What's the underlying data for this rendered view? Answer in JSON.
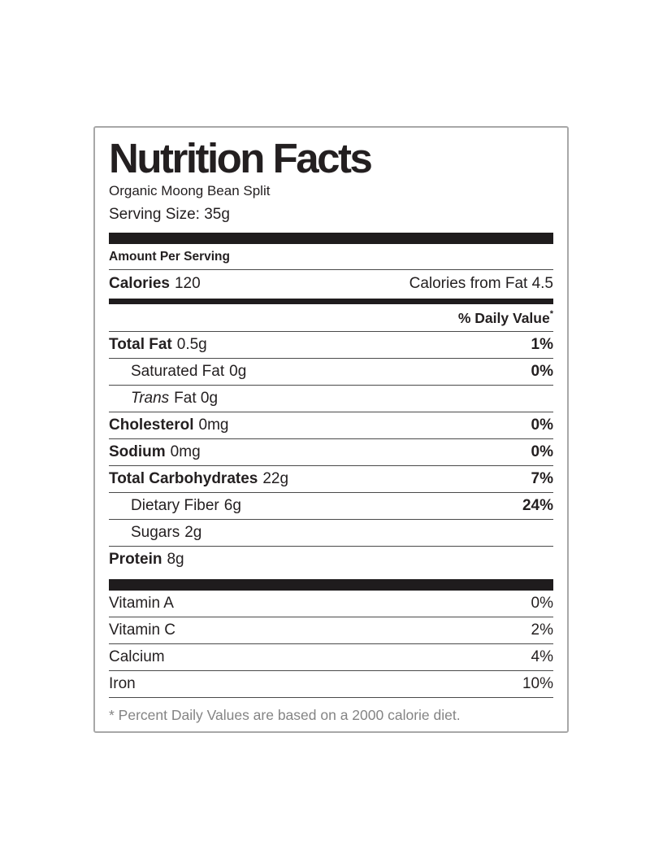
{
  "label": {
    "title": "Nutrition Facts",
    "product_name": "Organic Moong Bean Split",
    "serving_size": "Serving Size: 35g",
    "amount_per_serving": "Amount Per Serving",
    "calories": {
      "label": "Calories",
      "value": "120",
      "from_fat": "Calories from Fat 4.5"
    },
    "daily_value_header": "% Daily Value",
    "daily_value_asterisk": "*",
    "nutrients": [
      {
        "name": "Total Fat",
        "amount": "0.5g",
        "percent": "1%"
      },
      {
        "name": "Saturated Fat",
        "amount": "0g",
        "percent": "0%"
      },
      {
        "name": "Trans",
        "amount": "Fat 0g",
        "percent": ""
      },
      {
        "name": "Cholesterol",
        "amount": "0mg",
        "percent": "0%"
      },
      {
        "name": "Sodium",
        "amount": "0mg",
        "percent": "0%"
      },
      {
        "name": "Total Carbohydrates",
        "amount": "22g",
        "percent": "7%"
      },
      {
        "name": "Dietary Fiber",
        "amount": "6g",
        "percent": "24%"
      },
      {
        "name": "Sugars",
        "amount": "2g",
        "percent": ""
      },
      {
        "name": "Protein",
        "amount": "8g",
        "percent": ""
      }
    ],
    "vitamins": [
      {
        "name": "Vitamin A",
        "percent": "0%"
      },
      {
        "name": "Vitamin C",
        "percent": "2%"
      },
      {
        "name": "Calcium",
        "percent": "4%"
      },
      {
        "name": "Iron",
        "percent": "10%"
      }
    ],
    "footnote": "* Percent Daily Values are based on a 2000 calorie diet."
  },
  "colors": {
    "text": "#231f20",
    "footnote_gray": "#848484",
    "border_gray": "#a8a8a8",
    "bar_black": "#1f1c1d"
  }
}
